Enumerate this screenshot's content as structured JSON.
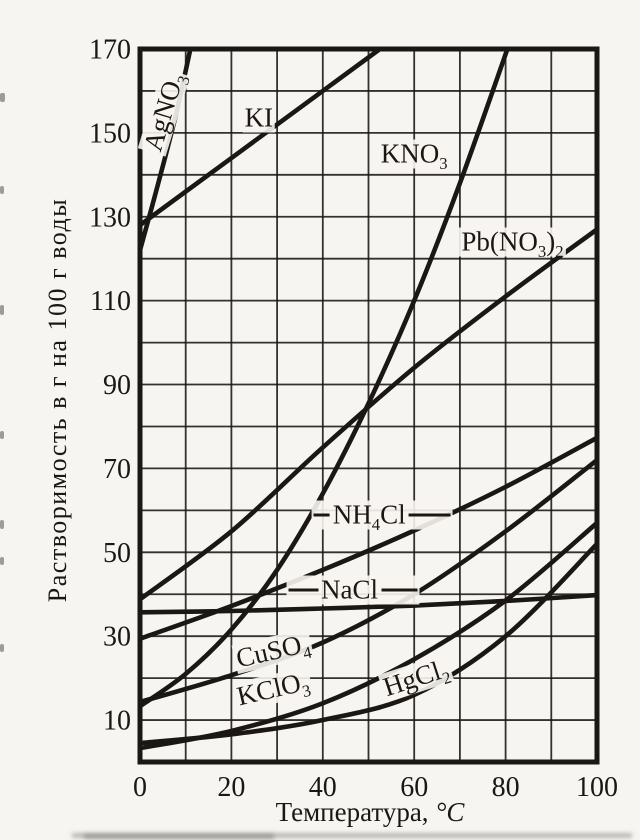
{
  "page": {
    "background": "#f7f5f1",
    "ink": "#1b1713"
  },
  "chart_data": {
    "type": "line",
    "title": "",
    "xlabel": "Температура,",
    "xlabel_unit": "°C",
    "ylabel": "Растворимость в г на 100 г воды",
    "xlim": [
      0,
      100
    ],
    "ylim": [
      0,
      170
    ],
    "x_ticks": [
      0,
      20,
      40,
      60,
      80,
      100
    ],
    "y_ticks": [
      10,
      30,
      50,
      70,
      90,
      110,
      130,
      150,
      170
    ],
    "grid_step": 10,
    "grid": true,
    "legend_position": "inline-labels",
    "series": [
      {
        "name": "AgNO₃",
        "label": {
          "t": 5.3,
          "v": 155,
          "rotate": -73
        },
        "points": [
          [
            0,
            122
          ],
          [
            4,
            138
          ],
          [
            8,
            155
          ],
          [
            12,
            175
          ]
        ]
      },
      {
        "name": "KI",
        "label": {
          "t": 26,
          "v": 153.5,
          "rotate": 0
        },
        "points": [
          [
            0,
            128
          ],
          [
            20,
            144
          ],
          [
            40,
            160
          ],
          [
            55,
            172
          ]
        ]
      },
      {
        "name": "KNO₃",
        "label": {
          "t": 60,
          "v": 145,
          "rotate": 0
        },
        "points": [
          [
            0,
            13.3
          ],
          [
            10,
            21
          ],
          [
            20,
            31.6
          ],
          [
            30,
            45.8
          ],
          [
            40,
            64
          ],
          [
            50,
            85.5
          ],
          [
            60,
            110
          ],
          [
            70,
            138
          ],
          [
            82,
            175
          ]
        ]
      },
      {
        "name": "Pb(NO₃)₂",
        "label": {
          "t": 81.5,
          "v": 124,
          "rotate": 0
        },
        "points": [
          [
            0,
            38.8
          ],
          [
            20,
            55
          ],
          [
            40,
            75
          ],
          [
            60,
            94
          ],
          [
            80,
            111
          ],
          [
            100,
            127
          ]
        ]
      },
      {
        "name": "NH₄Cl",
        "label": {
          "t": 53,
          "v": 59,
          "rotate": 0,
          "dash_left": 16,
          "dash_right": 42
        },
        "points": [
          [
            0,
            29.4
          ],
          [
            20,
            37.2
          ],
          [
            40,
            45.8
          ],
          [
            60,
            55.2
          ],
          [
            80,
            65.6
          ],
          [
            100,
            77.3
          ]
        ]
      },
      {
        "name": "NaCl",
        "label": {
          "t": 46.5,
          "v": 41,
          "rotate": 0,
          "dash_left": 30,
          "dash_right": 36
        },
        "points": [
          [
            0,
            35.7
          ],
          [
            20,
            36.0
          ],
          [
            40,
            36.6
          ],
          [
            60,
            37.3
          ],
          [
            80,
            38.4
          ],
          [
            100,
            39.8
          ]
        ]
      },
      {
        "name": "CuSO₄",
        "label": {
          "t": 29,
          "v": 26.5,
          "rotate": -13
        },
        "points": [
          [
            0,
            14.3
          ],
          [
            20,
            20.7
          ],
          [
            40,
            28.5
          ],
          [
            60,
            40
          ],
          [
            80,
            55
          ],
          [
            100,
            72
          ]
        ]
      },
      {
        "name": "KClO₃",
        "label": {
          "t": 29,
          "v": 17.5,
          "rotate": -13
        },
        "points": [
          [
            0,
            3.3
          ],
          [
            20,
            7.4
          ],
          [
            40,
            14
          ],
          [
            60,
            24.5
          ],
          [
            80,
            38.5
          ],
          [
            100,
            57
          ]
        ]
      },
      {
        "name": "HgCl₂",
        "label": {
          "t": 60.5,
          "v": 20,
          "rotate": -18
        },
        "points": [
          [
            0,
            4.5
          ],
          [
            20,
            6.6
          ],
          [
            40,
            10
          ],
          [
            60,
            16
          ],
          [
            80,
            30
          ],
          [
            100,
            52
          ]
        ]
      }
    ]
  }
}
